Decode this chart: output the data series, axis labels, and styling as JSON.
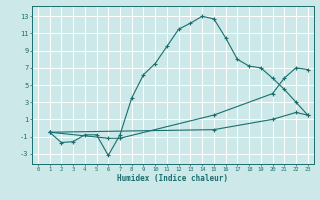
{
  "xlabel": "Humidex (Indice chaleur)",
  "ylabel": "",
  "xlim": [
    -0.5,
    23.5
  ],
  "ylim": [
    -4.2,
    14.2
  ],
  "xticks": [
    0,
    1,
    2,
    3,
    4,
    5,
    6,
    7,
    8,
    9,
    10,
    11,
    12,
    13,
    14,
    15,
    16,
    17,
    18,
    19,
    20,
    21,
    22,
    23
  ],
  "yticks": [
    -3,
    -1,
    1,
    3,
    5,
    7,
    9,
    11,
    13
  ],
  "bg_color": "#cce8e8",
  "line_color": "#1a6e6e",
  "grid_color": "#ffffff",
  "series": [
    {
      "x": [
        1,
        2,
        3,
        4,
        5,
        6,
        7,
        8,
        9,
        10,
        11,
        12,
        13,
        14,
        15,
        16,
        17,
        18,
        19,
        20,
        21,
        22,
        23
      ],
      "y": [
        -0.5,
        -1.7,
        -1.6,
        -0.8,
        -0.8,
        -3.2,
        -0.8,
        3.5,
        6.2,
        7.5,
        9.5,
        11.5,
        12.2,
        13.0,
        12.7,
        10.5,
        8.0,
        7.2,
        7.0,
        5.8,
        4.5,
        3.0,
        1.5
      ]
    },
    {
      "x": [
        1,
        6,
        7,
        15,
        20,
        21,
        22,
        23
      ],
      "y": [
        -0.5,
        -1.2,
        -1.2,
        1.5,
        4.0,
        5.8,
        7.0,
        6.8
      ]
    },
    {
      "x": [
        1,
        15,
        20,
        22,
        23
      ],
      "y": [
        -0.5,
        -0.2,
        1.0,
        1.8,
        1.5
      ]
    }
  ]
}
